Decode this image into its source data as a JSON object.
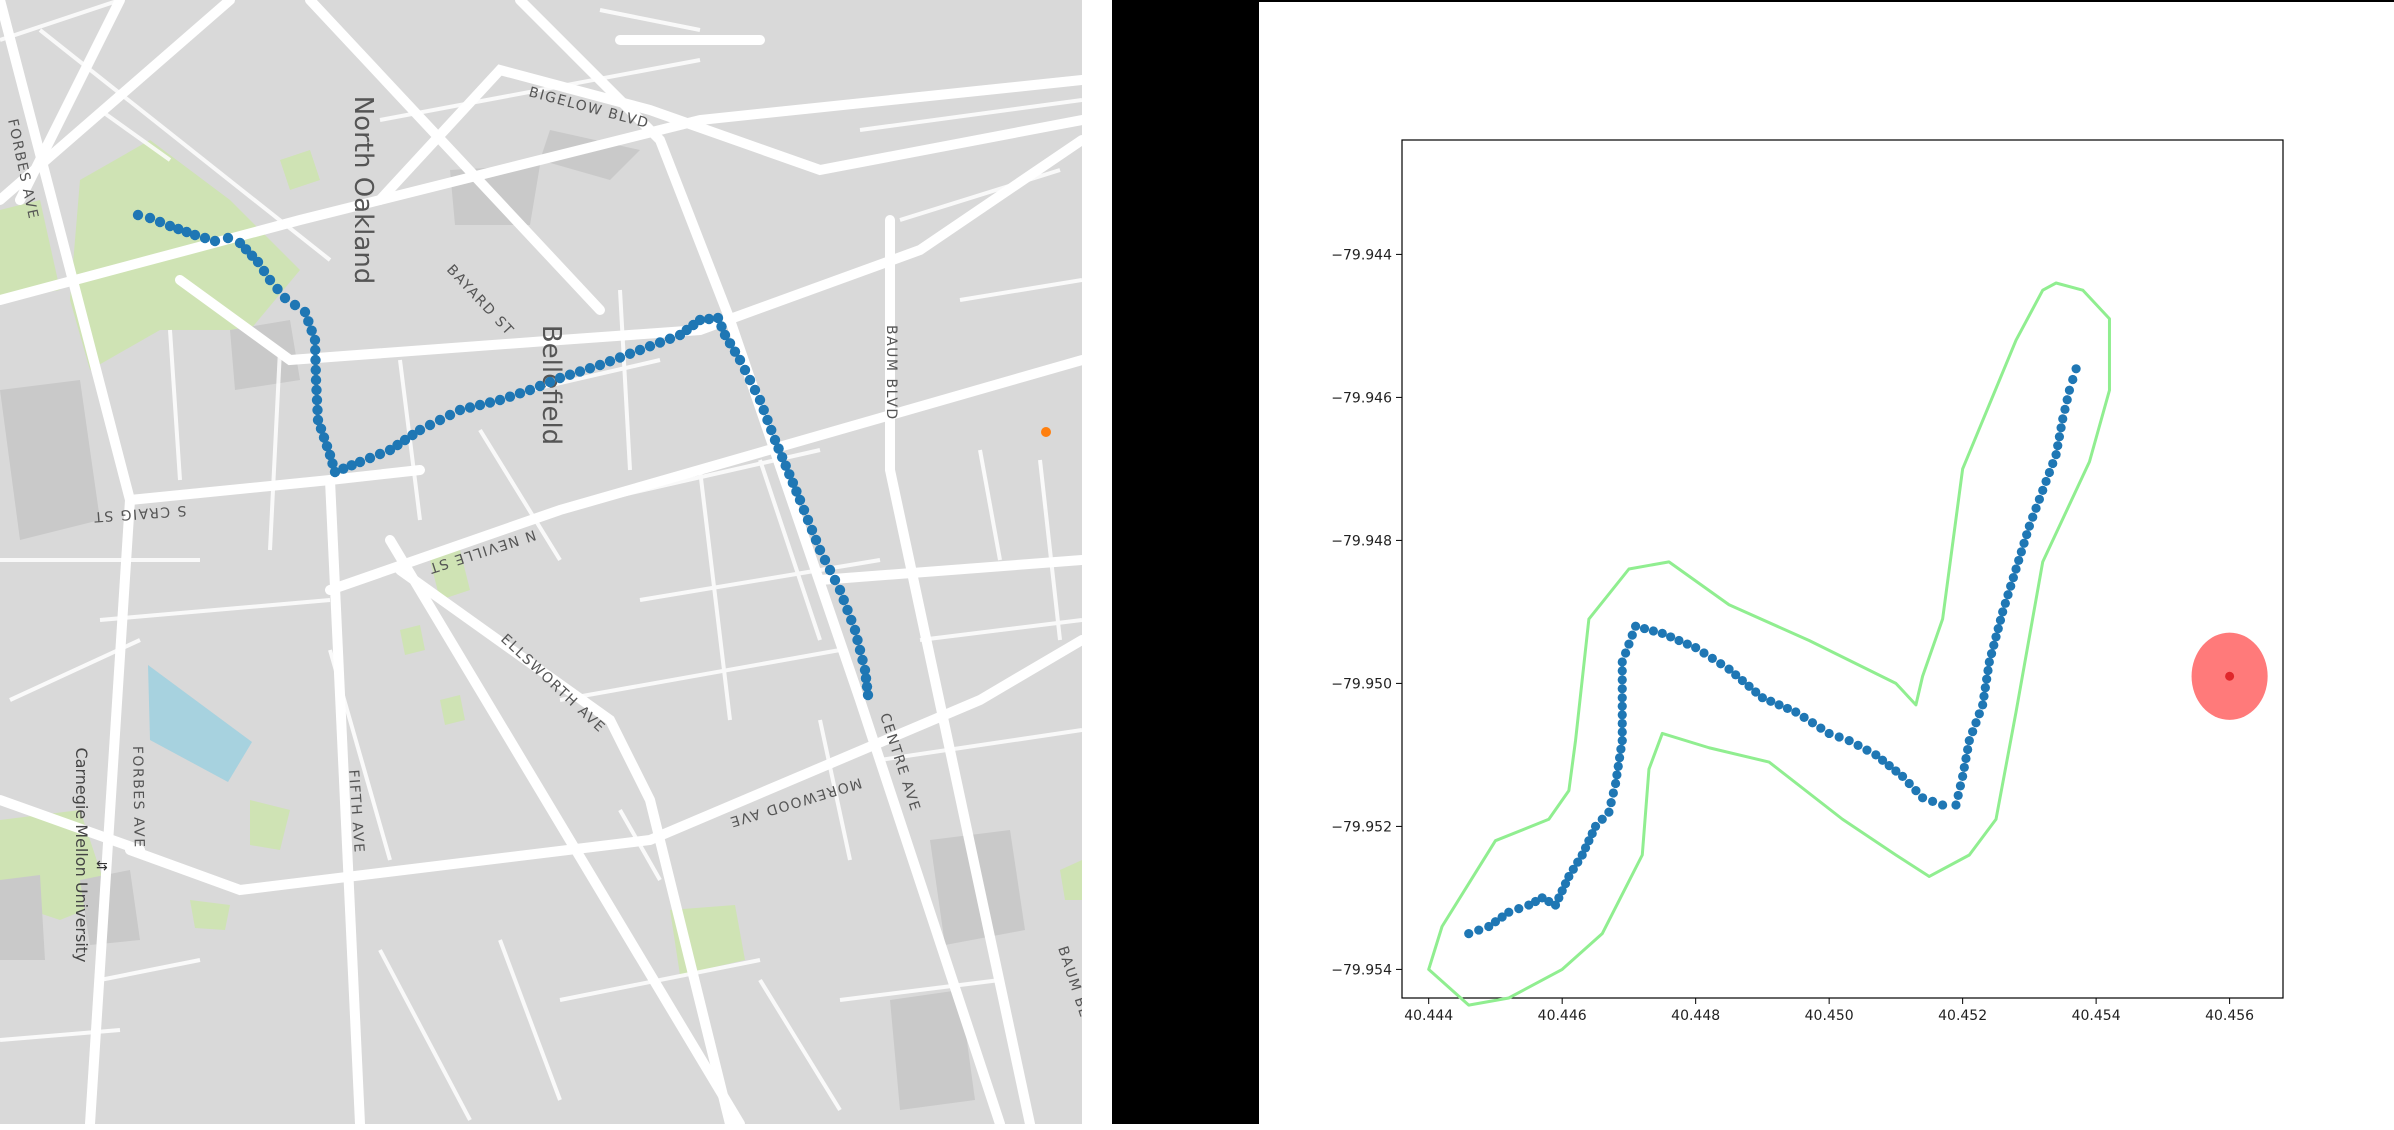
{
  "map": {
    "neighborhoods": [
      "North Oakland",
      "Bellefield"
    ],
    "campus": "Carnegie Mellon University",
    "streets": {
      "forbes_top": "FORBES AVE",
      "bigelow": "BIGELOW BLVD",
      "bayard": "BAYARD ST",
      "baum": "BAUM BLVD",
      "baum_bottom": "BAUM BL",
      "craig": "S CRAIG ST",
      "neville": "N NEVILLE ST",
      "ellsworth": "ELLSWORTH AVE",
      "centre": "CENTRE AVE",
      "morewood": "MOREWOOD AVE",
      "fifth": "FIFTH AVE",
      "forbes_bottom": "FORBES AVE"
    },
    "colors": {
      "background": "#d9d9d9",
      "road": "#ffffff",
      "park": "#cfe3b4",
      "water": "#a7d2df",
      "track": "#1f77b4",
      "marker": "#ff7f0e"
    },
    "route_color": "#1f77b4"
  },
  "chart_data": {
    "type": "scatter",
    "title": "",
    "xlabel": "",
    "ylabel": "",
    "xlim": [
      40.4436,
      40.4568
    ],
    "ylim": [
      -79.9544,
      -79.9424
    ],
    "grid": false,
    "x_ticks": [
      "40.444",
      "40.446",
      "40.448",
      "40.450",
      "40.452",
      "40.454",
      "40.456"
    ],
    "y_ticks": [
      "-79.944",
      "-79.946",
      "-79.948",
      "-79.950",
      "-79.952",
      "-79.954"
    ],
    "x_tick_values": [
      40.444,
      40.446,
      40.448,
      40.45,
      40.452,
      40.454,
      40.456
    ],
    "y_tick_values": [
      -79.944,
      -79.946,
      -79.948,
      -79.95,
      -79.952,
      -79.954
    ],
    "route_points": [
      [
        40.4446,
        -79.9535
      ],
      [
        40.4449,
        -79.9534
      ],
      [
        40.4452,
        -79.9532
      ],
      [
        40.4455,
        -79.9531
      ],
      [
        40.4457,
        -79.953
      ],
      [
        40.4459,
        -79.9531
      ],
      [
        40.4461,
        -79.9527
      ],
      [
        40.4463,
        -79.9524
      ],
      [
        40.4465,
        -79.952
      ],
      [
        40.4467,
        -79.9518
      ],
      [
        40.4468,
        -79.9514
      ],
      [
        40.4469,
        -79.9508
      ],
      [
        40.4469,
        -79.9502
      ],
      [
        40.4469,
        -79.9497
      ],
      [
        40.4471,
        -79.9492
      ],
      [
        40.4475,
        -79.9493
      ],
      [
        40.448,
        -79.9495
      ],
      [
        40.4485,
        -79.9498
      ],
      [
        40.449,
        -79.9502
      ],
      [
        40.4495,
        -79.9504
      ],
      [
        40.45,
        -79.9507
      ],
      [
        40.4503,
        -79.9508
      ],
      [
        40.4507,
        -79.951
      ],
      [
        40.4511,
        -79.9513
      ],
      [
        40.4514,
        -79.9516
      ],
      [
        40.4517,
        -79.9517
      ],
      [
        40.4519,
        -79.9517
      ],
      [
        40.452,
        -79.9513
      ],
      [
        40.4521,
        -79.9508
      ],
      [
        40.4523,
        -79.9503
      ],
      [
        40.4524,
        -79.9497
      ],
      [
        40.4526,
        -79.949
      ],
      [
        40.4528,
        -79.9484
      ],
      [
        40.453,
        -79.9478
      ],
      [
        40.4532,
        -79.9473
      ],
      [
        40.4534,
        -79.9468
      ],
      [
        40.4535,
        -79.9463
      ],
      [
        40.4536,
        -79.9459
      ],
      [
        40.4537,
        -79.9456
      ]
    ],
    "buffer_outline": [
      [
        40.4446,
        -79.9545
      ],
      [
        40.444,
        -79.954
      ],
      [
        40.4442,
        -79.9534
      ],
      [
        40.445,
        -79.9522
      ],
      [
        40.4458,
        -79.9519
      ],
      [
        40.4461,
        -79.9515
      ],
      [
        40.4462,
        -79.9508
      ],
      [
        40.4464,
        -79.9491
      ],
      [
        40.447,
        -79.9484
      ],
      [
        40.4476,
        -79.9483
      ],
      [
        40.4485,
        -79.9489
      ],
      [
        40.4497,
        -79.9494
      ],
      [
        40.451,
        -79.95
      ],
      [
        40.4513,
        -79.9503
      ],
      [
        40.4514,
        -79.9499
      ],
      [
        40.4517,
        -79.9491
      ],
      [
        40.452,
        -79.947
      ],
      [
        40.4528,
        -79.9452
      ],
      [
        40.4532,
        -79.9445
      ],
      [
        40.4534,
        -79.9444
      ],
      [
        40.4538,
        -79.9445
      ],
      [
        40.4542,
        -79.9449
      ],
      [
        40.4542,
        -79.9459
      ],
      [
        40.4539,
        -79.9469
      ],
      [
        40.4532,
        -79.9483
      ],
      [
        40.4528,
        -79.9504
      ],
      [
        40.4525,
        -79.9519
      ],
      [
        40.4521,
        -79.9524
      ],
      [
        40.4515,
        -79.9527
      ],
      [
        40.451,
        -79.9524
      ],
      [
        40.4502,
        -79.9519
      ],
      [
        40.4491,
        -79.9511
      ],
      [
        40.4482,
        -79.9509
      ],
      [
        40.4475,
        -79.9507
      ],
      [
        40.4473,
        -79.9512
      ],
      [
        40.4472,
        -79.9524
      ],
      [
        40.4466,
        -79.9535
      ],
      [
        40.446,
        -79.954
      ],
      [
        40.4452,
        -79.9544
      ],
      [
        40.4446,
        -79.9545
      ]
    ],
    "target_point": [
      40.456,
      -79.9499
    ],
    "target_radius_deg": 0.0006,
    "colors": {
      "route": "#1f77b4",
      "buffer": "#90ee90",
      "target_fill": "#ff6b6b",
      "target_point": "#e0272b"
    }
  }
}
